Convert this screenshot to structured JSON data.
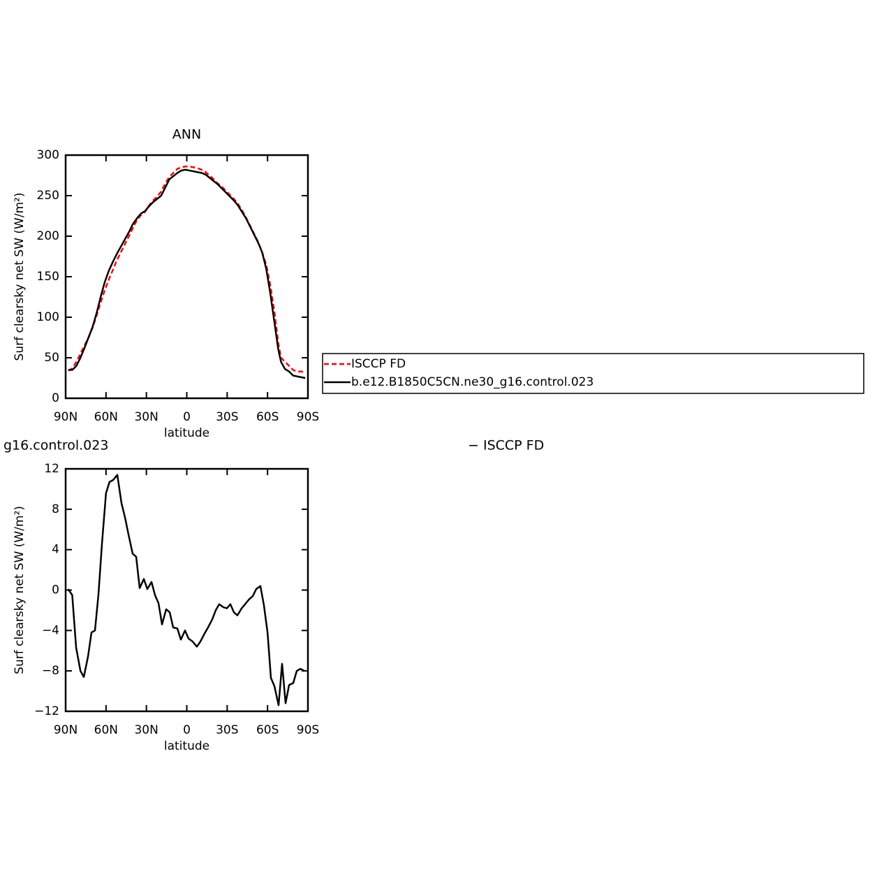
{
  "chart_data": [
    {
      "type": "line",
      "title": "ANN",
      "x_label": "latitude",
      "y_label": "Surf clearsky net SW (W/m²)",
      "x": [
        88,
        85,
        82,
        79,
        76,
        73,
        70,
        67,
        64,
        61,
        58,
        55,
        52,
        49,
        46,
        43,
        40,
        37,
        34,
        31,
        28,
        25,
        22,
        19,
        16,
        13,
        10,
        7,
        4,
        1,
        -2,
        -5,
        -8,
        -11,
        -14,
        -17,
        -20,
        -23,
        -26,
        -29,
        -32,
        -35,
        -38,
        -41,
        -44,
        -47,
        -50,
        -53,
        -56,
        -59,
        -62,
        -65,
        -68,
        -70,
        -73,
        -76,
        -79,
        -82,
        -85,
        -88
      ],
      "series": [
        {
          "name": "ISCCP FD",
          "color": "#ff0000",
          "style": "dashed",
          "values": [
            34,
            37,
            45,
            55,
            65,
            75,
            87,
            102,
            118,
            133,
            146,
            158,
            170,
            180,
            190,
            200,
            210,
            220,
            226,
            230,
            238,
            244,
            249,
            255,
            265,
            273,
            278,
            283,
            285,
            286,
            286,
            285,
            284,
            282,
            279,
            275,
            270,
            265,
            261,
            256,
            251,
            246,
            240,
            232,
            223,
            213,
            203,
            193,
            180,
            165,
            140,
            108,
            68,
            50,
            45,
            40,
            35,
            33,
            33,
            32
          ]
        },
        {
          "name": "b.e12.B1850C5CN.ne30_g16.control.023",
          "color": "#000000",
          "style": "solid",
          "values": [
            35,
            35,
            40,
            50,
            62,
            75,
            88,
            105,
            125,
            143,
            157,
            168,
            178,
            187,
            196,
            205,
            215,
            222,
            228,
            231,
            237,
            242,
            246,
            250,
            260,
            270,
            274,
            278,
            281,
            282,
            281,
            280,
            279,
            278,
            276,
            272,
            268,
            264,
            259,
            254,
            249,
            244,
            238,
            230,
            222,
            212,
            202,
            192,
            180,
            160,
            130,
            95,
            60,
            45,
            36,
            33,
            28,
            27,
            26,
            25
          ]
        }
      ],
      "xlim": [
        90,
        -90
      ],
      "xticks": [
        {
          "value": 90,
          "label": "90N"
        },
        {
          "value": 60,
          "label": "60N"
        },
        {
          "value": 30,
          "label": "30N"
        },
        0,
        {
          "value": -30,
          "label": "30S"
        },
        {
          "value": -60,
          "label": "60S"
        },
        {
          "value": -90,
          "label": "90S"
        }
      ],
      "ylim": [
        0,
        300
      ],
      "yticks": [
        0,
        50,
        100,
        150,
        200,
        250,
        300
      ],
      "legend": "right"
    },
    {
      "type": "line",
      "title": [
        "g16.control.023",
        "− ISCCP FD"
      ],
      "x_label": "latitude",
      "y_label": "Surf clearsky net SW (W/m²)",
      "x": [
        88.2,
        85.1,
        82.2,
        79,
        76.5,
        73.4,
        70.8,
        68.2,
        65.6,
        63,
        60,
        57.4,
        54.7,
        51.6,
        48.5,
        45.9,
        43.3,
        40.2,
        37.6,
        35,
        31.9,
        29.3,
        26.2,
        23.6,
        21,
        18.4,
        15.3,
        12.7,
        10.1,
        7,
        4.4,
        1.3,
        -1.3,
        -4.4,
        -7.5,
        -10.1,
        -13.2,
        -15.8,
        -18.9,
        -21.5,
        -24.1,
        -27.2,
        -29.8,
        -32.4,
        -35,
        -37.6,
        -40.8,
        -43.3,
        -46.4,
        -49,
        -51.6,
        -54.7,
        -57.3,
        -60,
        -62.5,
        -65.1,
        -68.2,
        -70.8,
        -73.4,
        -76,
        -79.1,
        -81.7,
        -84.3,
        -87.4
      ],
      "series": [
        {
          "color": "#000000",
          "style": "solid",
          "values": [
            0.1,
            -0.5,
            -5.7,
            -8,
            -8.6,
            -6.6,
            -4.2,
            -4,
            -0.4,
            4.6,
            9.6,
            10.7,
            10.9,
            11.4,
            8.6,
            7.2,
            5.5,
            3.6,
            3.3,
            0.2,
            1.1,
            0.1,
            0.8,
            -0.5,
            -1.3,
            -3.4,
            -1.9,
            -2.2,
            -3.7,
            -3.8,
            -4.9,
            -4,
            -4.8,
            -5.1,
            -5.6,
            -5.1,
            -4.3,
            -3.7,
            -2.9,
            -2,
            -1.4,
            -1.7,
            -1.8,
            -1.4,
            -2.2,
            -2.5,
            -1.8,
            -1.4,
            -0.9,
            -0.6,
            0.1,
            0.4,
            -1.5,
            -4.2,
            -8.7,
            -9.5,
            -11.4,
            -7.3,
            -11.2,
            -9.4,
            -9.2,
            -8,
            -7.8,
            -8
          ]
        }
      ],
      "xlim": [
        90,
        -90
      ],
      "xticks": [
        {
          "value": 90,
          "label": "90N"
        },
        {
          "value": 60,
          "label": "60N"
        },
        {
          "value": 30,
          "label": "30N"
        },
        0,
        {
          "value": -30,
          "label": "30S"
        },
        {
          "value": -60,
          "label": "60S"
        },
        {
          "value": -90,
          "label": "90S"
        }
      ],
      "ylim": [
        -12,
        12
      ],
      "yticks": [
        {
          "value": -12,
          "label": "−12"
        },
        {
          "value": -8,
          "label": "−8"
        },
        {
          "value": -4,
          "label": "−4"
        },
        0,
        4,
        8,
        12
      ]
    }
  ]
}
